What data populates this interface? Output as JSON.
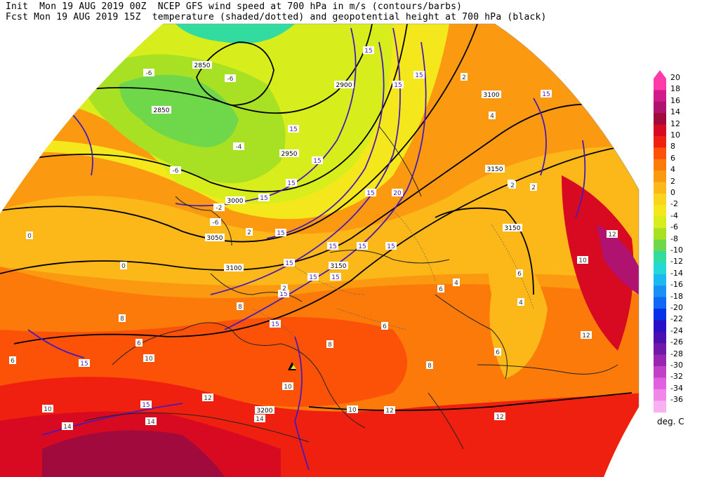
{
  "header": {
    "line1": "Init  Mon 19 AUG 2019 00Z  NCEP GFS wind speed at 700 hPa in m/s (contours/barbs)",
    "line2": "Fcst Mon 19 AUG 2019 15Z  temperature (shaded/dotted) and geopotential height at 700 hPa (black)"
  },
  "colorbar": {
    "unit": "deg. C",
    "levels": [
      "20",
      "18",
      "16",
      "14",
      "12",
      "10",
      "8",
      "6",
      "4",
      "2",
      "0",
      "-2",
      "-4",
      "-6",
      "-8",
      "-10",
      "-12",
      "-14",
      "-16",
      "-18",
      "-20",
      "-22",
      "-24",
      "-26",
      "-28",
      "-30",
      "-32",
      "-34",
      "-36"
    ],
    "colors": [
      "#ff3aa9",
      "#d11a8c",
      "#b0126f",
      "#a00a3c",
      "#d80a22",
      "#f02010",
      "#fb5208",
      "#fb7a0a",
      "#fb9a10",
      "#fbb818",
      "#fbd41e",
      "#f4e81c",
      "#d8ee1c",
      "#a8e024",
      "#6ed84a",
      "#32dca0",
      "#24d8d8",
      "#1cb8f0",
      "#1890f4",
      "#1068f4",
      "#0830e8",
      "#2810c8",
      "#4a10b0",
      "#7018a8",
      "#9826b0",
      "#c040c8",
      "#e060e0",
      "#f088ea",
      "#f8b0f0"
    ]
  },
  "height_labels": [
    "2850",
    "2850",
    "2900",
    "2950",
    "3000",
    "3050",
    "3100",
    "3100",
    "3150",
    "3150",
    "3150",
    "3200"
  ],
  "wind_labels": [
    "15",
    "15",
    "15",
    "15",
    "15",
    "15",
    "15",
    "15",
    "15",
    "15",
    "15",
    "15",
    "15",
    "15",
    "15",
    "15",
    "15",
    "15",
    "15",
    "15",
    "20"
  ],
  "temp_labels": [
    "-6",
    "-6",
    "-6",
    "-6",
    "-4",
    "-2",
    "0",
    "0",
    "2",
    "2",
    "2",
    "2",
    "4",
    "4",
    "4",
    "4",
    "6",
    "6",
    "6",
    "6",
    "6",
    "6",
    "8",
    "8",
    "8",
    "8",
    "10",
    "10",
    "10",
    "10",
    "10",
    "12",
    "12",
    "12",
    "12",
    "14",
    "14",
    "14",
    "2",
    "12"
  ]
}
